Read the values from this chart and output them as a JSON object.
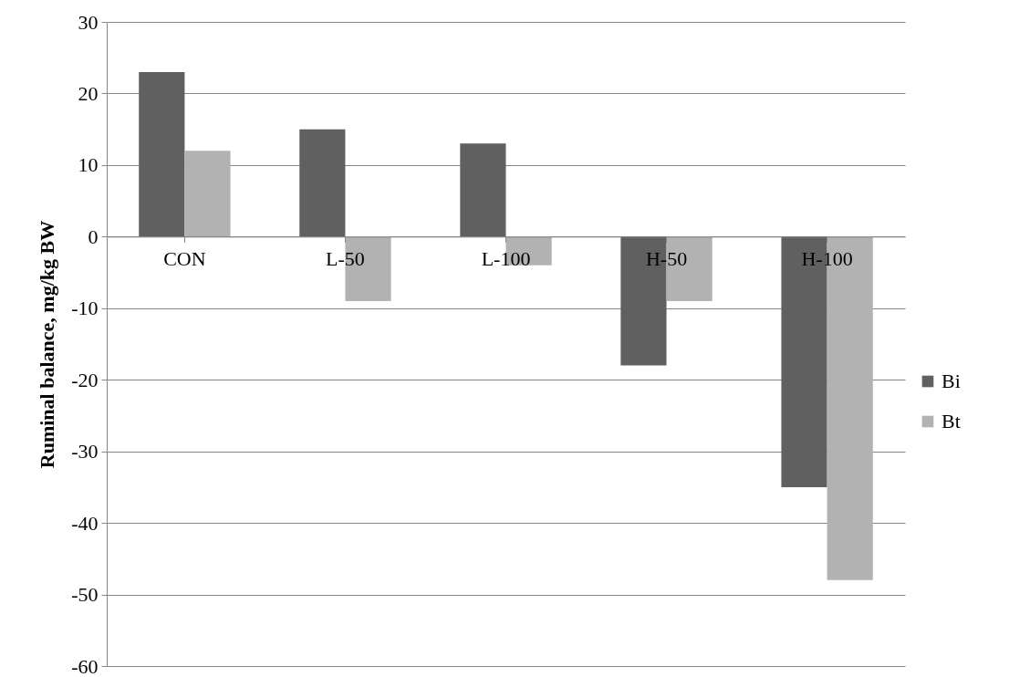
{
  "chart_data": {
    "type": "bar",
    "ylabel": "Ruminal balance, mg/kg BW",
    "categories": [
      "CON",
      "L-50",
      "L-100",
      "H-50",
      "H-100"
    ],
    "series": [
      {
        "name": "Bi",
        "color": "#606060",
        "values": [
          23,
          15,
          13,
          -18,
          -35
        ]
      },
      {
        "name": "Bt",
        "color": "#b2b2b2",
        "values": [
          12,
          -9,
          -4,
          -9,
          -48
        ]
      }
    ],
    "ylim": [
      -60,
      30
    ],
    "yticks": [
      -60,
      -50,
      -40,
      -30,
      -20,
      -10,
      0,
      10,
      20,
      30
    ],
    "grid": "y",
    "legend": "right"
  }
}
